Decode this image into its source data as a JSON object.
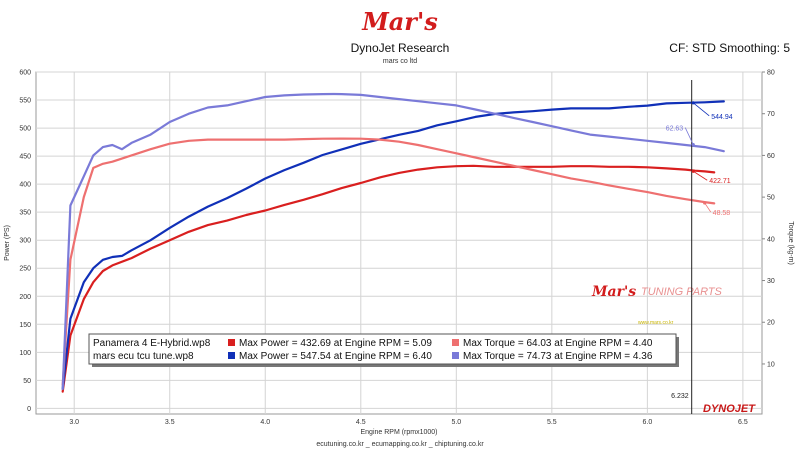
{
  "header": {
    "logo": "Mar's",
    "title": "DynoJet Research",
    "subtitle": "mars co ltd",
    "right_info": "CF: STD Smoothing: 5"
  },
  "footer": {
    "links": "ecutuning.co.kr _ ecumapping.co.kr _ chiptuning.co.kr"
  },
  "watermark": {
    "brand": "Mar's",
    "text": "TUNING PARTS",
    "small_text": "www.mars.co.kr",
    "dyno_logo": "DYNOJET"
  },
  "colors": {
    "red": "#d91f1f",
    "blue": "#1030b8",
    "light_red": "#ee7070",
    "light_blue": "#7a7ad8"
  },
  "chart_data": {
    "type": "line",
    "title": "DynoJet Research",
    "xlabel": "Engine RPM (rpmx1000)",
    "ylabel": "Power (PS)",
    "y2label": "Torque (kg-m)",
    "xlim": [
      2.8,
      6.6
    ],
    "ylim": [
      -10,
      600
    ],
    "y2lim": [
      -2,
      80
    ],
    "x_ticks": [
      "3.0",
      "3.5",
      "4.0",
      "4.5",
      "5.0",
      "5.5",
      "6.0",
      "6.5"
    ],
    "y_ticks": [
      "0",
      "50",
      "100",
      "150",
      "200",
      "250",
      "300",
      "350",
      "400",
      "450",
      "500",
      "550",
      "600"
    ],
    "y2_ticks": [
      "10",
      "20",
      "30",
      "40",
      "50",
      "60",
      "70",
      "80"
    ],
    "grid": true,
    "cursor": {
      "x": 6.232,
      "label": "6.232"
    },
    "series": [
      {
        "name": "Max Power",
        "axis": "left",
        "color": "#d91f1f",
        "x": [
          2.94,
          2.98,
          3.05,
          3.1,
          3.15,
          3.2,
          3.3,
          3.4,
          3.5,
          3.6,
          3.7,
          3.8,
          3.9,
          4.0,
          4.1,
          4.2,
          4.3,
          4.4,
          4.5,
          4.6,
          4.7,
          4.8,
          4.9,
          5.0,
          5.09,
          5.2,
          5.3,
          5.4,
          5.5,
          5.6,
          5.7,
          5.8,
          5.9,
          6.0,
          6.1,
          6.2,
          6.25,
          6.3,
          6.35
        ],
        "y": [
          30,
          130,
          195,
          225,
          245,
          255,
          268,
          285,
          300,
          315,
          327,
          335,
          345,
          353,
          363,
          372,
          382,
          393,
          402,
          412,
          420,
          426,
          430,
          432,
          432.69,
          431,
          431,
          431,
          431,
          432,
          432,
          431,
          431,
          430,
          428,
          426,
          424,
          422.7,
          421
        ]
      },
      {
        "name": "Max Power",
        "axis": "left",
        "color": "#1030b8",
        "x": [
          2.94,
          2.98,
          3.05,
          3.1,
          3.15,
          3.2,
          3.25,
          3.3,
          3.4,
          3.5,
          3.6,
          3.7,
          3.8,
          3.9,
          4.0,
          4.1,
          4.2,
          4.3,
          4.4,
          4.5,
          4.6,
          4.7,
          4.8,
          4.9,
          5.0,
          5.1,
          5.2,
          5.3,
          5.4,
          5.5,
          5.6,
          5.7,
          5.8,
          5.9,
          6.0,
          6.1,
          6.2,
          6.3,
          6.4
        ],
        "y": [
          35,
          160,
          225,
          250,
          265,
          270,
          272,
          282,
          300,
          322,
          342,
          360,
          375,
          392,
          410,
          425,
          438,
          452,
          462,
          472,
          480,
          488,
          495,
          505,
          512,
          520,
          525,
          528,
          530,
          533,
          535,
          535,
          535,
          538,
          540,
          544,
          545,
          546,
          547.5
        ]
      },
      {
        "name": "Max Torque",
        "axis": "right",
        "color": "#ee7070",
        "x": [
          2.94,
          2.98,
          3.05,
          3.1,
          3.15,
          3.2,
          3.3,
          3.4,
          3.5,
          3.6,
          3.7,
          3.8,
          3.9,
          4.0,
          4.1,
          4.2,
          4.3,
          4.4,
          4.5,
          4.6,
          4.7,
          4.8,
          4.9,
          5.0,
          5.1,
          5.2,
          5.3,
          5.4,
          5.5,
          5.6,
          5.7,
          5.8,
          5.9,
          6.0,
          6.1,
          6.2,
          6.3,
          6.35
        ],
        "y": [
          5,
          35,
          50,
          57,
          58,
          58.5,
          60,
          61.5,
          62.8,
          63.5,
          63.8,
          63.8,
          63.8,
          63.8,
          63.8,
          63.9,
          64.0,
          64.03,
          64.0,
          63.8,
          63.3,
          62.5,
          61.5,
          60.5,
          59.5,
          58.5,
          57.5,
          56.5,
          55.5,
          54.5,
          53.7,
          52.8,
          52.0,
          51.2,
          50.3,
          49.5,
          48.8,
          48.5
        ]
      },
      {
        "name": "Max Torque",
        "axis": "right",
        "color": "#7a7ad8",
        "x": [
          2.94,
          2.98,
          3.05,
          3.1,
          3.15,
          3.2,
          3.25,
          3.3,
          3.4,
          3.5,
          3.6,
          3.7,
          3.8,
          3.9,
          4.0,
          4.1,
          4.2,
          4.3,
          4.36,
          4.4,
          4.5,
          4.6,
          4.7,
          4.8,
          4.9,
          5.0,
          5.1,
          5.2,
          5.3,
          5.4,
          5.5,
          5.6,
          5.7,
          5.8,
          5.9,
          6.0,
          6.1,
          6.2,
          6.3,
          6.4
        ],
        "y": [
          4,
          48,
          55,
          60,
          62,
          62.5,
          61.5,
          63,
          65,
          68,
          70,
          71.5,
          72,
          73,
          74,
          74.4,
          74.6,
          74.7,
          74.73,
          74.7,
          74.5,
          74,
          73.5,
          73,
          72.5,
          72,
          71,
          70,
          69,
          68,
          67,
          66,
          65,
          64.5,
          64,
          63.5,
          63,
          62.5,
          62,
          61
        ]
      }
    ],
    "annotations": [
      {
        "text": "544.94",
        "color": "#1030b8",
        "axis": "left",
        "at_x": 6.24,
        "at_y": 545
      },
      {
        "text": "422.71",
        "color": "#d91f1f",
        "axis": "left",
        "at_x": 6.24,
        "at_y": 423
      },
      {
        "text": "62.63",
        "color": "#7a7ad8",
        "axis": "right",
        "at_x": 6.24,
        "at_y": 62.6
      },
      {
        "text": "48.58",
        "color": "#ee7070",
        "axis": "right",
        "at_x": 6.3,
        "at_y": 48.6
      }
    ],
    "legend": {
      "placement": "bottom-left",
      "rows": [
        {
          "run": "Panamera 4 E-Hybrid.wp8",
          "power": "Max Power = 432.69 at Engine RPM = 5.09",
          "power_color": "#d91f1f",
          "torque": "Max Torque = 64.03 at Engine RPM = 4.40",
          "torque_color": "#ee7070"
        },
        {
          "run": "mars ecu tcu tune.wp8",
          "power": "Max Power = 547.54 at Engine RPM = 6.40",
          "power_color": "#1030b8",
          "torque": "Max Torque = 74.73 at Engine RPM = 4.36",
          "torque_color": "#7a7ad8"
        }
      ]
    }
  }
}
